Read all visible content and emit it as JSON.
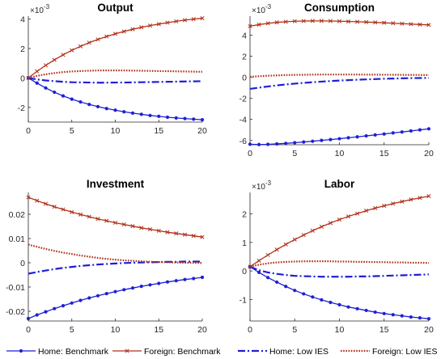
{
  "chart_data": [
    {
      "type": "line",
      "title": "Output",
      "exponent_label": "×10",
      "exponent_power": "-3",
      "xlim": [
        0,
        20
      ],
      "ylim": [
        -3,
        4.2
      ],
      "xticks": [
        0,
        5,
        10,
        15,
        20
      ],
      "xtick_labels": [
        "0",
        "5",
        "10",
        "15",
        "20"
      ],
      "yticks": [
        -2,
        0,
        2,
        4
      ],
      "ytick_labels": [
        "-2",
        "0",
        "2",
        "4"
      ],
      "series": [
        {
          "key": "home_bench",
          "values": [
            0,
            -0.35,
            -0.68,
            -0.97,
            -1.22,
            -1.44,
            -1.63,
            -1.8,
            -1.95,
            -2.08,
            -2.19,
            -2.3,
            -2.39,
            -2.47,
            -2.55,
            -2.61,
            -2.67,
            -2.72,
            -2.76,
            -2.8,
            -2.84
          ]
        },
        {
          "key": "foreign_bench",
          "values": [
            0,
            0.45,
            0.86,
            1.23,
            1.57,
            1.88,
            2.15,
            2.4,
            2.62,
            2.82,
            3.0,
            3.16,
            3.31,
            3.44,
            3.56,
            3.66,
            3.76,
            3.85,
            3.93,
            4.0,
            4.06
          ]
        },
        {
          "key": "home_low",
          "values": [
            0,
            -0.1,
            -0.17,
            -0.22,
            -0.26,
            -0.29,
            -0.3,
            -0.31,
            -0.32,
            -0.32,
            -0.31,
            -0.31,
            -0.3,
            -0.29,
            -0.28,
            -0.27,
            -0.26,
            -0.25,
            -0.24,
            -0.23,
            -0.22
          ]
        },
        {
          "key": "foreign_low",
          "values": [
            0,
            0.14,
            0.25,
            0.33,
            0.4,
            0.44,
            0.47,
            0.49,
            0.51,
            0.51,
            0.51,
            0.51,
            0.5,
            0.49,
            0.48,
            0.47,
            0.46,
            0.45,
            0.44,
            0.43,
            0.42
          ]
        }
      ]
    },
    {
      "type": "line",
      "title": "Consumption",
      "exponent_label": "×10",
      "exponent_power": "-3",
      "xlim": [
        0,
        20
      ],
      "ylim": [
        -6.4,
        5.8
      ],
      "xticks": [
        0,
        5,
        10,
        15,
        20
      ],
      "xtick_labels": [
        "0",
        "5",
        "10",
        "15",
        "20"
      ],
      "yticks": [
        -6,
        -4,
        -2,
        0,
        2,
        4
      ],
      "ytick_labels": [
        "-6",
        "-4",
        "-2",
        "0",
        "2",
        "4"
      ],
      "series": [
        {
          "key": "home_bench",
          "values": [
            -6.35,
            -6.38,
            -6.36,
            -6.32,
            -6.27,
            -6.21,
            -6.14,
            -6.07,
            -5.99,
            -5.91,
            -5.83,
            -5.74,
            -5.65,
            -5.56,
            -5.47,
            -5.38,
            -5.28,
            -5.19,
            -5.09,
            -4.99,
            -4.89
          ]
        },
        {
          "key": "foreign_bench",
          "values": [
            4.85,
            5.0,
            5.12,
            5.21,
            5.27,
            5.32,
            5.34,
            5.35,
            5.35,
            5.34,
            5.32,
            5.3,
            5.27,
            5.24,
            5.21,
            5.17,
            5.13,
            5.09,
            5.05,
            5.01,
            4.97
          ]
        },
        {
          "key": "home_low",
          "values": [
            -1.1,
            -0.98,
            -0.87,
            -0.77,
            -0.68,
            -0.6,
            -0.53,
            -0.47,
            -0.41,
            -0.36,
            -0.31,
            -0.27,
            -0.23,
            -0.2,
            -0.17,
            -0.14,
            -0.12,
            -0.1,
            -0.08,
            -0.07,
            -0.06
          ]
        },
        {
          "key": "foreign_low",
          "values": [
            0.05,
            0.1,
            0.15,
            0.18,
            0.21,
            0.23,
            0.24,
            0.25,
            0.26,
            0.26,
            0.26,
            0.26,
            0.26,
            0.25,
            0.25,
            0.24,
            0.24,
            0.23,
            0.23,
            0.22,
            0.22
          ]
        }
      ]
    },
    {
      "type": "line",
      "title": "Investment",
      "exponent_label": "",
      "exponent_power": "",
      "xlim": [
        0,
        20
      ],
      "ylim": [
        -0.024,
        0.029
      ],
      "xticks": [
        0,
        5,
        10,
        15,
        20
      ],
      "xtick_labels": [
        "0",
        "5",
        "10",
        "15",
        "20"
      ],
      "yticks": [
        -0.02,
        -0.01,
        0,
        0.01,
        0.02
      ],
      "ytick_labels": [
        "-0.02",
        "-0.01",
        "0",
        "0.01",
        "0.02"
      ],
      "series": [
        {
          "key": "home_bench",
          "values": [
            -0.023,
            -0.0215,
            -0.0202,
            -0.0189,
            -0.0177,
            -0.0166,
            -0.0155,
            -0.0145,
            -0.0136,
            -0.0127,
            -0.0119,
            -0.0111,
            -0.0104,
            -0.0097,
            -0.0091,
            -0.0085,
            -0.0079,
            -0.0074,
            -0.0069,
            -0.0065,
            -0.006
          ]
        },
        {
          "key": "foreign_bench",
          "values": [
            0.027,
            0.0256,
            0.0243,
            0.0231,
            0.022,
            0.0209,
            0.0199,
            0.019,
            0.0181,
            0.0173,
            0.0165,
            0.0158,
            0.0151,
            0.0144,
            0.0138,
            0.0132,
            0.0126,
            0.0121,
            0.0116,
            0.0111,
            0.0106
          ]
        },
        {
          "key": "home_low",
          "values": [
            -0.0045,
            -0.0038,
            -0.0032,
            -0.0026,
            -0.0021,
            -0.0017,
            -0.0013,
            -0.001,
            -0.0007,
            -0.0005,
            -0.0003,
            -0.0001,
            0.0,
            0.0001,
            0.0002,
            0.0003,
            0.0004,
            0.0004,
            0.0005,
            0.0005,
            0.0005
          ]
        },
        {
          "key": "foreign_low",
          "values": [
            0.0075,
            0.0066,
            0.0057,
            0.0049,
            0.0042,
            0.0036,
            0.003,
            0.0025,
            0.002,
            0.0016,
            0.0013,
            0.001,
            0.0008,
            0.0006,
            0.0004,
            0.0003,
            0.0002,
            0.0001,
            0.0,
            0.0,
            -0.0001
          ]
        }
      ]
    },
    {
      "type": "line",
      "title": "Labor",
      "exponent_label": "×10",
      "exponent_power": "-3",
      "xlim": [
        0,
        20
      ],
      "ylim": [
        -1.75,
        2.75
      ],
      "xticks": [
        0,
        5,
        10,
        15,
        20
      ],
      "xtick_labels": [
        "0",
        "5",
        "10",
        "15",
        "20"
      ],
      "yticks": [
        -1,
        0,
        1,
        2
      ],
      "ytick_labels": [
        "-1",
        "0",
        "1",
        "2"
      ],
      "series": [
        {
          "key": "home_bench",
          "values": [
            0.15,
            -0.05,
            -0.23,
            -0.39,
            -0.54,
            -0.68,
            -0.8,
            -0.91,
            -1.01,
            -1.1,
            -1.18,
            -1.26,
            -1.32,
            -1.38,
            -1.44,
            -1.49,
            -1.53,
            -1.57,
            -1.61,
            -1.64,
            -1.67
          ]
        },
        {
          "key": "foreign_bench",
          "values": [
            0.15,
            0.36,
            0.56,
            0.75,
            0.93,
            1.1,
            1.26,
            1.41,
            1.55,
            1.68,
            1.8,
            1.91,
            2.01,
            2.11,
            2.2,
            2.28,
            2.36,
            2.43,
            2.5,
            2.56,
            2.62
          ]
        },
        {
          "key": "home_low",
          "values": [
            0.15,
            0.03,
            -0.05,
            -0.1,
            -0.14,
            -0.17,
            -0.18,
            -0.19,
            -0.2,
            -0.2,
            -0.2,
            -0.2,
            -0.19,
            -0.19,
            -0.18,
            -0.17,
            -0.16,
            -0.15,
            -0.14,
            -0.13,
            -0.12
          ]
        },
        {
          "key": "foreign_low",
          "values": [
            0.15,
            0.22,
            0.27,
            0.3,
            0.32,
            0.33,
            0.34,
            0.34,
            0.34,
            0.34,
            0.33,
            0.33,
            0.32,
            0.32,
            0.31,
            0.31,
            0.3,
            0.3,
            0.29,
            0.29,
            0.28
          ]
        }
      ]
    }
  ],
  "series_styles": {
    "home_bench": {
      "color": "#1f1fd6",
      "marker": "dot",
      "dash": "solid"
    },
    "foreign_bench": {
      "color": "#b03018",
      "marker": "cross",
      "dash": "solid"
    },
    "home_low": {
      "color": "#1f1fd6",
      "marker": "none",
      "dash": "dashdot"
    },
    "foreign_low": {
      "color": "#b03018",
      "marker": "none",
      "dash": "dotted"
    }
  },
  "legend": {
    "placement": "bottom",
    "entries": [
      {
        "key": "home_bench",
        "label": "Home: Benchmark"
      },
      {
        "key": "foreign_bench",
        "label": "Foreign: Benchmark"
      },
      {
        "key": "home_low",
        "label": "Home: Low IES"
      },
      {
        "key": "foreign_low",
        "label": "Foreign: Low IES"
      }
    ]
  }
}
